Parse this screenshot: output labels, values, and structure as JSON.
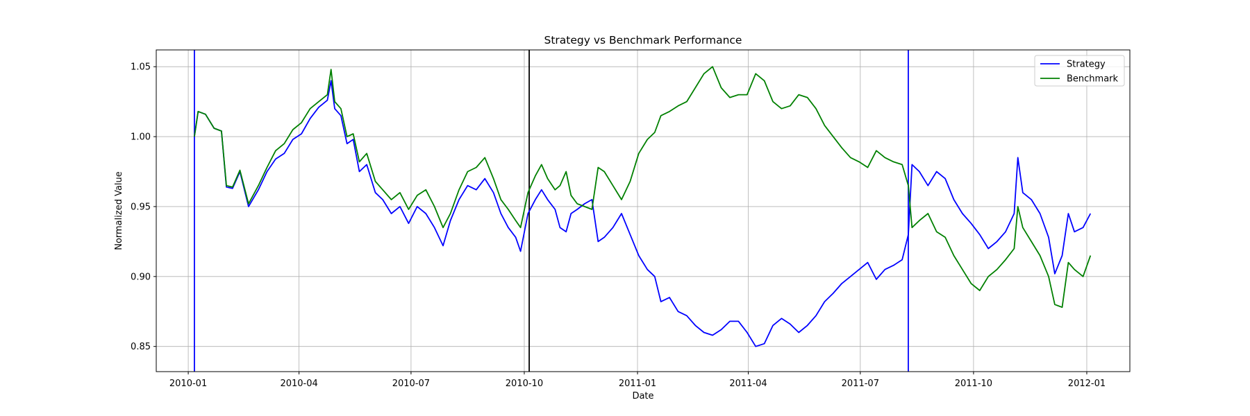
{
  "chart_data": {
    "type": "line",
    "title": "Strategy vs Benchmark Performance",
    "xlabel": "Date",
    "ylabel": "Normalized Value",
    "xlim": [
      "2009-12-06",
      "2012-02-05"
    ],
    "ylim": [
      0.832,
      1.062
    ],
    "grid": true,
    "legend_position": "top-right",
    "x_ticks": [
      "2010-01",
      "2010-04",
      "2010-07",
      "2010-10",
      "2011-01",
      "2011-04",
      "2011-07",
      "2011-10",
      "2012-01"
    ],
    "y_ticks": [
      0.85,
      0.9,
      0.95,
      1.0,
      1.05
    ],
    "y_tick_labels": [
      "0.85",
      "0.90",
      "0.95",
      "1.00",
      "1.05"
    ],
    "vertical_lines": [
      {
        "date": "2010-01-06",
        "color": "#0000ff"
      },
      {
        "date": "2010-10-05",
        "color": "#000000"
      },
      {
        "date": "2011-08-09",
        "color": "#0000ff"
      }
    ],
    "series": [
      {
        "name": "Strategy",
        "color": "#0000ff",
        "points": [
          [
            "2010-01-06",
            1.0
          ],
          [
            "2010-01-09",
            1.018
          ],
          [
            "2010-01-15",
            1.016
          ],
          [
            "2010-01-22",
            1.006
          ],
          [
            "2010-01-28",
            1.004
          ],
          [
            "2010-02-01",
            0.964
          ],
          [
            "2010-02-06",
            0.963
          ],
          [
            "2010-02-12",
            0.975
          ],
          [
            "2010-02-19",
            0.95
          ],
          [
            "2010-02-27",
            0.962
          ],
          [
            "2010-03-06",
            0.975
          ],
          [
            "2010-03-13",
            0.984
          ],
          [
            "2010-03-20",
            0.988
          ],
          [
            "2010-03-27",
            0.998
          ],
          [
            "2010-04-03",
            1.002
          ],
          [
            "2010-04-10",
            1.013
          ],
          [
            "2010-04-17",
            1.021
          ],
          [
            "2010-04-24",
            1.026
          ],
          [
            "2010-04-27",
            1.04
          ],
          [
            "2010-04-30",
            1.02
          ],
          [
            "2010-05-05",
            1.015
          ],
          [
            "2010-05-10",
            0.995
          ],
          [
            "2010-05-15",
            0.998
          ],
          [
            "2010-05-20",
            0.975
          ],
          [
            "2010-05-26",
            0.98
          ],
          [
            "2010-06-02",
            0.96
          ],
          [
            "2010-06-08",
            0.955
          ],
          [
            "2010-06-15",
            0.945
          ],
          [
            "2010-06-22",
            0.95
          ],
          [
            "2010-06-29",
            0.938
          ],
          [
            "2010-07-06",
            0.95
          ],
          [
            "2010-07-13",
            0.945
          ],
          [
            "2010-07-20",
            0.935
          ],
          [
            "2010-07-27",
            0.922
          ],
          [
            "2010-08-02",
            0.94
          ],
          [
            "2010-08-09",
            0.955
          ],
          [
            "2010-08-16",
            0.965
          ],
          [
            "2010-08-23",
            0.962
          ],
          [
            "2010-08-30",
            0.97
          ],
          [
            "2010-09-06",
            0.96
          ],
          [
            "2010-09-12",
            0.945
          ],
          [
            "2010-09-18",
            0.935
          ],
          [
            "2010-09-24",
            0.928
          ],
          [
            "2010-09-28",
            0.918
          ],
          [
            "2010-10-04",
            0.945
          ],
          [
            "2010-10-10",
            0.955
          ],
          [
            "2010-10-15",
            0.962
          ],
          [
            "2010-10-20",
            0.955
          ],
          [
            "2010-10-26",
            0.948
          ],
          [
            "2010-10-30",
            0.935
          ],
          [
            "2010-11-04",
            0.932
          ],
          [
            "2010-11-08",
            0.945
          ],
          [
            "2010-11-13",
            0.948
          ],
          [
            "2010-11-19",
            0.952
          ],
          [
            "2010-11-25",
            0.955
          ],
          [
            "2010-11-30",
            0.925
          ],
          [
            "2010-12-05",
            0.928
          ],
          [
            "2010-12-12",
            0.935
          ],
          [
            "2010-12-19",
            0.945
          ],
          [
            "2010-12-26",
            0.93
          ],
          [
            "2011-01-02",
            0.915
          ],
          [
            "2011-01-09",
            0.905
          ],
          [
            "2011-01-15",
            0.9
          ],
          [
            "2011-01-20",
            0.882
          ],
          [
            "2011-01-27",
            0.885
          ],
          [
            "2011-02-03",
            0.875
          ],
          [
            "2011-02-10",
            0.872
          ],
          [
            "2011-02-17",
            0.865
          ],
          [
            "2011-02-24",
            0.86
          ],
          [
            "2011-03-03",
            0.858
          ],
          [
            "2011-03-10",
            0.862
          ],
          [
            "2011-03-17",
            0.868
          ],
          [
            "2011-03-24",
            0.868
          ],
          [
            "2011-03-31",
            0.86
          ],
          [
            "2011-04-07",
            0.85
          ],
          [
            "2011-04-14",
            0.852
          ],
          [
            "2011-04-21",
            0.865
          ],
          [
            "2011-04-28",
            0.87
          ],
          [
            "2011-05-05",
            0.866
          ],
          [
            "2011-05-12",
            0.86
          ],
          [
            "2011-05-19",
            0.865
          ],
          [
            "2011-05-26",
            0.872
          ],
          [
            "2011-06-02",
            0.882
          ],
          [
            "2011-06-09",
            0.888
          ],
          [
            "2011-06-16",
            0.895
          ],
          [
            "2011-06-23",
            0.9
          ],
          [
            "2011-06-30",
            0.905
          ],
          [
            "2011-07-07",
            0.91
          ],
          [
            "2011-07-14",
            0.898
          ],
          [
            "2011-07-21",
            0.905
          ],
          [
            "2011-07-28",
            0.908
          ],
          [
            "2011-08-04",
            0.912
          ],
          [
            "2011-08-09",
            0.93
          ],
          [
            "2011-08-12",
            0.98
          ],
          [
            "2011-08-18",
            0.975
          ],
          [
            "2011-08-25",
            0.965
          ],
          [
            "2011-09-01",
            0.975
          ],
          [
            "2011-09-08",
            0.97
          ],
          [
            "2011-09-15",
            0.955
          ],
          [
            "2011-09-22",
            0.945
          ],
          [
            "2011-09-29",
            0.938
          ],
          [
            "2011-10-06",
            0.93
          ],
          [
            "2011-10-13",
            0.92
          ],
          [
            "2011-10-20",
            0.925
          ],
          [
            "2011-10-27",
            0.932
          ],
          [
            "2011-11-03",
            0.945
          ],
          [
            "2011-11-06",
            0.985
          ],
          [
            "2011-11-10",
            0.96
          ],
          [
            "2011-11-17",
            0.955
          ],
          [
            "2011-11-24",
            0.945
          ],
          [
            "2011-12-01",
            0.928
          ],
          [
            "2011-12-06",
            0.902
          ],
          [
            "2011-12-12",
            0.915
          ],
          [
            "2011-12-17",
            0.945
          ],
          [
            "2011-12-22",
            0.932
          ],
          [
            "2011-12-29",
            0.935
          ],
          [
            "2012-01-04",
            0.945
          ]
        ]
      },
      {
        "name": "Benchmark",
        "color": "#008000",
        "points": [
          [
            "2010-01-06",
            1.0
          ],
          [
            "2010-01-09",
            1.018
          ],
          [
            "2010-01-15",
            1.016
          ],
          [
            "2010-01-22",
            1.006
          ],
          [
            "2010-01-28",
            1.004
          ],
          [
            "2010-02-01",
            0.965
          ],
          [
            "2010-02-06",
            0.964
          ],
          [
            "2010-02-12",
            0.976
          ],
          [
            "2010-02-19",
            0.952
          ],
          [
            "2010-02-27",
            0.965
          ],
          [
            "2010-03-06",
            0.978
          ],
          [
            "2010-03-13",
            0.99
          ],
          [
            "2010-03-20",
            0.995
          ],
          [
            "2010-03-27",
            1.005
          ],
          [
            "2010-04-03",
            1.01
          ],
          [
            "2010-04-10",
            1.02
          ],
          [
            "2010-04-17",
            1.025
          ],
          [
            "2010-04-24",
            1.03
          ],
          [
            "2010-04-27",
            1.048
          ],
          [
            "2010-04-30",
            1.025
          ],
          [
            "2010-05-05",
            1.02
          ],
          [
            "2010-05-10",
            1.0
          ],
          [
            "2010-05-15",
            1.002
          ],
          [
            "2010-05-20",
            0.982
          ],
          [
            "2010-05-26",
            0.988
          ],
          [
            "2010-06-02",
            0.968
          ],
          [
            "2010-06-08",
            0.962
          ],
          [
            "2010-06-15",
            0.955
          ],
          [
            "2010-06-22",
            0.96
          ],
          [
            "2010-06-29",
            0.948
          ],
          [
            "2010-07-06",
            0.958
          ],
          [
            "2010-07-13",
            0.962
          ],
          [
            "2010-07-20",
            0.95
          ],
          [
            "2010-07-27",
            0.935
          ],
          [
            "2010-08-02",
            0.945
          ],
          [
            "2010-08-09",
            0.962
          ],
          [
            "2010-08-16",
            0.975
          ],
          [
            "2010-08-23",
            0.978
          ],
          [
            "2010-08-30",
            0.985
          ],
          [
            "2010-09-06",
            0.97
          ],
          [
            "2010-09-12",
            0.955
          ],
          [
            "2010-09-18",
            0.948
          ],
          [
            "2010-09-24",
            0.94
          ],
          [
            "2010-09-28",
            0.935
          ],
          [
            "2010-10-04",
            0.96
          ],
          [
            "2010-10-10",
            0.972
          ],
          [
            "2010-10-15",
            0.98
          ],
          [
            "2010-10-20",
            0.97
          ],
          [
            "2010-10-26",
            0.962
          ],
          [
            "2010-10-30",
            0.965
          ],
          [
            "2010-11-04",
            0.975
          ],
          [
            "2010-11-08",
            0.958
          ],
          [
            "2010-11-13",
            0.952
          ],
          [
            "2010-11-19",
            0.95
          ],
          [
            "2010-11-25",
            0.948
          ],
          [
            "2010-11-30",
            0.978
          ],
          [
            "2010-12-05",
            0.975
          ],
          [
            "2010-12-12",
            0.965
          ],
          [
            "2010-12-19",
            0.955
          ],
          [
            "2010-12-26",
            0.968
          ],
          [
            "2011-01-02",
            0.988
          ],
          [
            "2011-01-09",
            0.998
          ],
          [
            "2011-01-15",
            1.003
          ],
          [
            "2011-01-20",
            1.015
          ],
          [
            "2011-01-27",
            1.018
          ],
          [
            "2011-02-03",
            1.022
          ],
          [
            "2011-02-10",
            1.025
          ],
          [
            "2011-02-17",
            1.035
          ],
          [
            "2011-02-24",
            1.045
          ],
          [
            "2011-03-03",
            1.05
          ],
          [
            "2011-03-10",
            1.035
          ],
          [
            "2011-03-17",
            1.028
          ],
          [
            "2011-03-24",
            1.03
          ],
          [
            "2011-03-31",
            1.03
          ],
          [
            "2011-04-07",
            1.045
          ],
          [
            "2011-04-14",
            1.04
          ],
          [
            "2011-04-21",
            1.025
          ],
          [
            "2011-04-28",
            1.02
          ],
          [
            "2011-05-05",
            1.022
          ],
          [
            "2011-05-12",
            1.03
          ],
          [
            "2011-05-19",
            1.028
          ],
          [
            "2011-05-26",
            1.02
          ],
          [
            "2011-06-02",
            1.008
          ],
          [
            "2011-06-09",
            1.0
          ],
          [
            "2011-06-16",
            0.992
          ],
          [
            "2011-06-23",
            0.985
          ],
          [
            "2011-06-30",
            0.982
          ],
          [
            "2011-07-07",
            0.978
          ],
          [
            "2011-07-14",
            0.99
          ],
          [
            "2011-07-21",
            0.985
          ],
          [
            "2011-07-28",
            0.982
          ],
          [
            "2011-08-04",
            0.98
          ],
          [
            "2011-08-09",
            0.965
          ],
          [
            "2011-08-12",
            0.935
          ],
          [
            "2011-08-18",
            0.94
          ],
          [
            "2011-08-25",
            0.945
          ],
          [
            "2011-09-01",
            0.932
          ],
          [
            "2011-09-08",
            0.928
          ],
          [
            "2011-09-15",
            0.915
          ],
          [
            "2011-09-22",
            0.905
          ],
          [
            "2011-09-29",
            0.895
          ],
          [
            "2011-10-06",
            0.89
          ],
          [
            "2011-10-13",
            0.9
          ],
          [
            "2011-10-20",
            0.905
          ],
          [
            "2011-10-27",
            0.912
          ],
          [
            "2011-11-03",
            0.92
          ],
          [
            "2011-11-06",
            0.95
          ],
          [
            "2011-11-10",
            0.935
          ],
          [
            "2011-11-17",
            0.925
          ],
          [
            "2011-11-24",
            0.915
          ],
          [
            "2011-12-01",
            0.9
          ],
          [
            "2011-12-06",
            0.88
          ],
          [
            "2011-12-12",
            0.878
          ],
          [
            "2011-12-17",
            0.91
          ],
          [
            "2011-12-22",
            0.905
          ],
          [
            "2011-12-29",
            0.9
          ],
          [
            "2012-01-04",
            0.915
          ]
        ]
      }
    ]
  }
}
